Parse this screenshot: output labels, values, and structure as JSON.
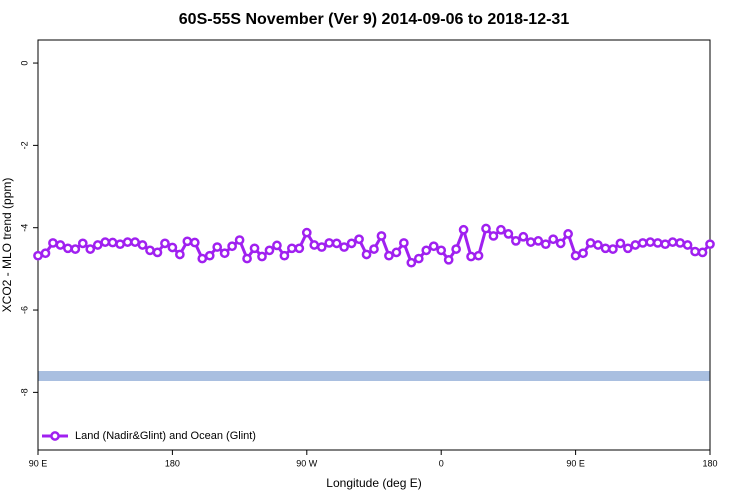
{
  "chart_data": {
    "type": "line",
    "title": "60S-55S November (Ver 9)   2014-09-06 to 2018-12-31",
    "xlabel": "Longitude (deg E)",
    "ylabel": "XCO2 - MLO trend (ppm)",
    "x": [
      90,
      95,
      100,
      105,
      110,
      115,
      120,
      125,
      130,
      135,
      140,
      145,
      150,
      155,
      160,
      165,
      170,
      175,
      180,
      185,
      190,
      195,
      200,
      205,
      210,
      215,
      220,
      225,
      230,
      235,
      240,
      245,
      250,
      255,
      260,
      265,
      270,
      275,
      280,
      285,
      290,
      295,
      300,
      305,
      310,
      315,
      320,
      325,
      330,
      335,
      340,
      345,
      350,
      355,
      360,
      365,
      370,
      375,
      380,
      385,
      390,
      395,
      400,
      405,
      410,
      415,
      420,
      425,
      430,
      435,
      440,
      445,
      450,
      455,
      460,
      465,
      470,
      475,
      480,
      485,
      490,
      495,
      500,
      505,
      510,
      515,
      520,
      525,
      530,
      535,
      540
    ],
    "series": [
      {
        "name": "Land (Nadir&Glint) and Ocean (Glint)",
        "color": "#a020f0",
        "values": [
          -4.68,
          -4.62,
          -4.37,
          -4.42,
          -4.5,
          -4.52,
          -4.38,
          -4.52,
          -4.42,
          -4.35,
          -4.36,
          -4.4,
          -4.35,
          -4.35,
          -4.42,
          -4.55,
          -4.6,
          -4.38,
          -4.48,
          -4.65,
          -4.33,
          -4.36,
          -4.75,
          -4.68,
          -4.47,
          -4.62,
          -4.45,
          -4.3,
          -4.75,
          -4.5,
          -4.7,
          -4.55,
          -4.43,
          -4.68,
          -4.5,
          -4.5,
          -4.12,
          -4.42,
          -4.47,
          -4.37,
          -4.38,
          -4.47,
          -4.38,
          -4.28,
          -4.65,
          -4.52,
          -4.2,
          -4.68,
          -4.6,
          -4.37,
          -4.85,
          -4.75,
          -4.55,
          -4.45,
          -4.55,
          -4.78,
          -4.52,
          -4.05,
          -4.7,
          -4.68,
          -4.02,
          -4.2,
          -4.05,
          -4.15,
          -4.32,
          -4.22,
          -4.35,
          -4.32,
          -4.4,
          -4.28,
          -4.38,
          -4.15,
          -4.68,
          -4.62,
          -4.37,
          -4.42,
          -4.5,
          -4.52,
          -4.38,
          -4.5,
          -4.42,
          -4.37,
          -4.35,
          -4.37,
          -4.4,
          -4.35,
          -4.37,
          -4.42,
          -4.58,
          -4.6,
          -4.4
        ]
      }
    ],
    "xlim": [
      90,
      540
    ],
    "xticks": [
      {
        "value": 90,
        "label": "90 E"
      },
      {
        "value": 180,
        "label": "180"
      },
      {
        "value": 270,
        "label": "90 W"
      },
      {
        "value": 360,
        "label": "0"
      },
      {
        "value": 450,
        "label": "90 E"
      },
      {
        "value": 540,
        "label": "180"
      }
    ],
    "ylim": [
      -9.4,
      0.56
    ],
    "yticks": [
      0,
      -2,
      -4,
      -6,
      -8
    ],
    "legend": "bottomleft"
  }
}
